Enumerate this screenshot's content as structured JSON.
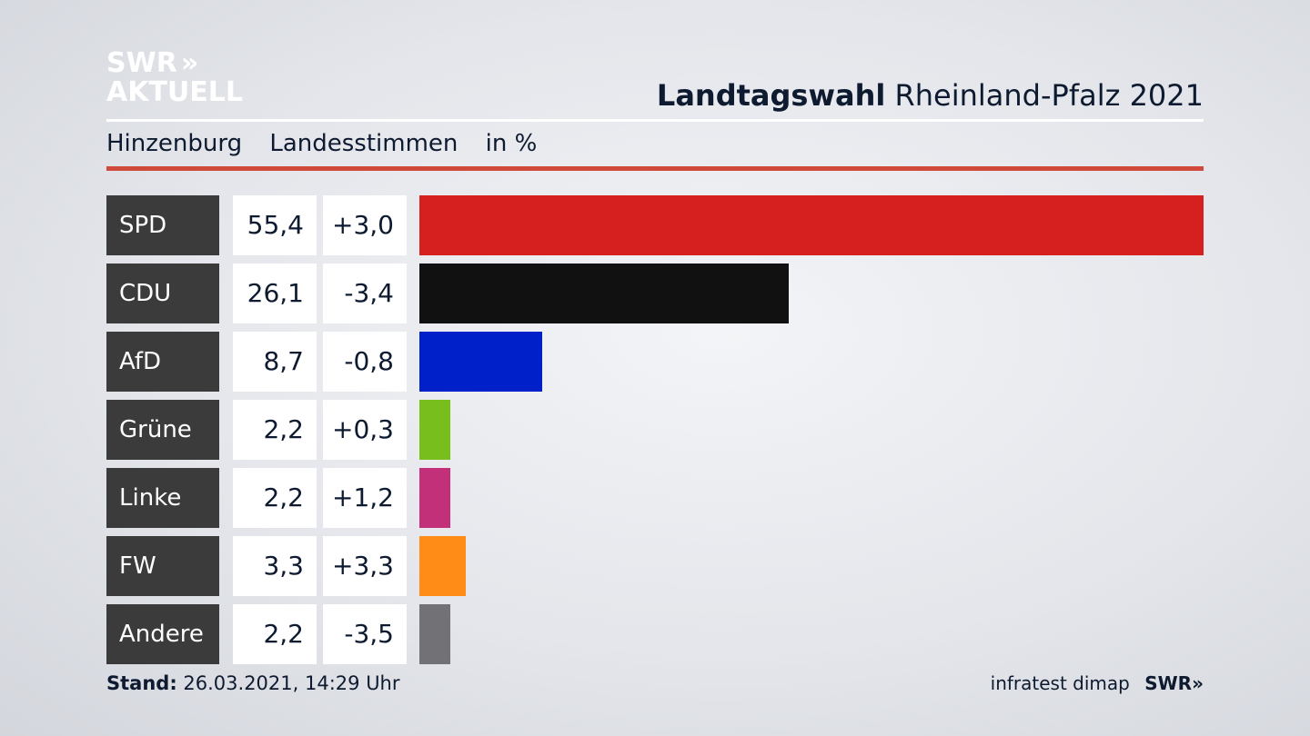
{
  "brand": {
    "line1": "SWR",
    "arrows": "»",
    "line2": "AKTUELL"
  },
  "header": {
    "title_bold": "Landtagswahl",
    "title_rest": "Rheinland-Pfalz 2021"
  },
  "subtitle": {
    "location": "Hinzenburg",
    "kind": "Landesstimmen",
    "unit": "in %"
  },
  "colors": {
    "rule_red": "#cf4a3a",
    "label_bg": "#3b3b3b"
  },
  "chart_data": {
    "type": "bar",
    "orientation": "horizontal",
    "categories": [
      "SPD",
      "CDU",
      "AfD",
      "Grüne",
      "Linke",
      "FW",
      "Andere"
    ],
    "values": [
      55.4,
      26.1,
      8.7,
      2.2,
      2.2,
      3.3,
      2.2
    ],
    "value_labels": [
      "55,4",
      "26,1",
      "8,7",
      "2,2",
      "2,2",
      "3,3",
      "2,2"
    ],
    "change_labels": [
      "+3,0",
      "-3,4",
      "-0,8",
      "+0,3",
      "+1,2",
      "+3,3",
      "-3,5"
    ],
    "colors": [
      "#d61f1f",
      "#111111",
      "#0021c9",
      "#78be1c",
      "#c2307a",
      "#ff8c16",
      "#727276"
    ],
    "xlim": [
      0,
      55.4
    ],
    "grid": false
  },
  "footer": {
    "stand_label": "Stand:",
    "stand_value": "26.03.2021, 14:29 Uhr",
    "source": "infratest dimap",
    "logo": "SWR»"
  }
}
